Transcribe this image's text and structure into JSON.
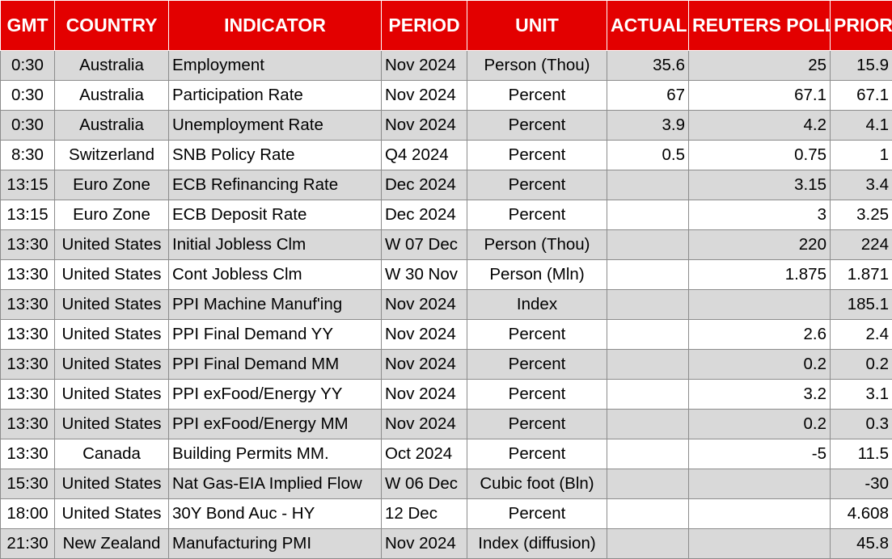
{
  "headers": {
    "gmt": "GMT",
    "country": "COUNTRY",
    "indicator": "INDICATOR",
    "period": "PERIOD",
    "unit": "UNIT",
    "actual": "ACTUAL",
    "poll": "REUTERS POLL",
    "prior": "PRIOR"
  },
  "colors": {
    "header_bg": "#e30000",
    "header_text": "#ffffff",
    "row_shade": "#d9d9d9"
  },
  "rows": [
    {
      "gmt": "0:30",
      "country": "Australia",
      "indicator": "Employment",
      "period": "Nov 2024",
      "unit": "Person (Thou)",
      "actual": "35.6",
      "poll": "25",
      "prior": "15.9"
    },
    {
      "gmt": "0:30",
      "country": "Australia",
      "indicator": "Participation Rate",
      "period": "Nov 2024",
      "unit": "Percent",
      "actual": "67",
      "poll": "67.1",
      "prior": "67.1"
    },
    {
      "gmt": "0:30",
      "country": "Australia",
      "indicator": "Unemployment Rate",
      "period": "Nov 2024",
      "unit": "Percent",
      "actual": "3.9",
      "poll": "4.2",
      "prior": "4.1"
    },
    {
      "gmt": "8:30",
      "country": "Switzerland",
      "indicator": "SNB Policy Rate",
      "period": "Q4 2024",
      "unit": "Percent",
      "actual": "0.5",
      "poll": "0.75",
      "prior": "1"
    },
    {
      "gmt": "13:15",
      "country": "Euro Zone",
      "indicator": "ECB Refinancing Rate",
      "period": "Dec 2024",
      "unit": "Percent",
      "actual": "",
      "poll": "3.15",
      "prior": "3.4"
    },
    {
      "gmt": "13:15",
      "country": "Euro Zone",
      "indicator": "ECB Deposit Rate",
      "period": "Dec 2024",
      "unit": "Percent",
      "actual": "",
      "poll": "3",
      "prior": "3.25"
    },
    {
      "gmt": "13:30",
      "country": "United States",
      "indicator": "Initial Jobless Clm",
      "period": "W 07 Dec",
      "unit": "Person (Thou)",
      "actual": "",
      "poll": "220",
      "prior": "224"
    },
    {
      "gmt": "13:30",
      "country": "United States",
      "indicator": "Cont Jobless Clm",
      "period": "W 30 Nov",
      "unit": "Person (Mln)",
      "actual": "",
      "poll": "1.875",
      "prior": "1.871"
    },
    {
      "gmt": "13:30",
      "country": "United States",
      "indicator": "PPI Machine Manuf'ing",
      "period": "Nov 2024",
      "unit": "Index",
      "actual": "",
      "poll": "",
      "prior": "185.1"
    },
    {
      "gmt": "13:30",
      "country": "United States",
      "indicator": "PPI Final Demand YY",
      "period": "Nov 2024",
      "unit": "Percent",
      "actual": "",
      "poll": "2.6",
      "prior": "2.4"
    },
    {
      "gmt": "13:30",
      "country": "United States",
      "indicator": "PPI Final Demand MM",
      "period": "Nov 2024",
      "unit": "Percent",
      "actual": "",
      "poll": "0.2",
      "prior": "0.2"
    },
    {
      "gmt": "13:30",
      "country": "United States",
      "indicator": "PPI exFood/Energy YY",
      "period": "Nov 2024",
      "unit": "Percent",
      "actual": "",
      "poll": "3.2",
      "prior": "3.1"
    },
    {
      "gmt": "13:30",
      "country": "United States",
      "indicator": "PPI exFood/Energy MM",
      "period": "Nov 2024",
      "unit": "Percent",
      "actual": "",
      "poll": "0.2",
      "prior": "0.3"
    },
    {
      "gmt": "13:30",
      "country": "Canada",
      "indicator": "Building Permits MM.",
      "period": "Oct 2024",
      "unit": "Percent",
      "actual": "",
      "poll": "-5",
      "prior": "11.5"
    },
    {
      "gmt": "15:30",
      "country": "United States",
      "indicator": "Nat Gas-EIA Implied Flow",
      "period": "W 06 Dec",
      "unit": "Cubic foot (Bln)",
      "actual": "",
      "poll": "",
      "prior": "-30"
    },
    {
      "gmt": "18:00",
      "country": "United States",
      "indicator": "30Y Bond Auc - HY",
      "period": "12 Dec",
      "unit": "Percent",
      "actual": "",
      "poll": "",
      "prior": "4.608"
    },
    {
      "gmt": "21:30",
      "country": "New Zealand",
      "indicator": "Manufacturing PMI",
      "period": "Nov 2024",
      "unit": "Index (diffusion)",
      "actual": "",
      "poll": "",
      "prior": "45.8"
    }
  ]
}
